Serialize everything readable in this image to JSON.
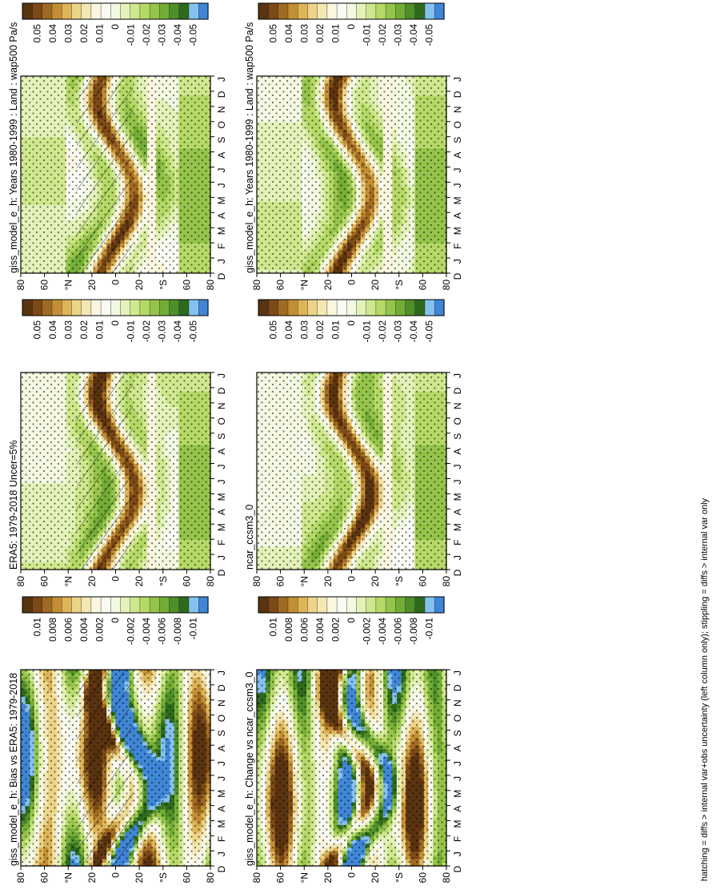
{
  "footer": "hatching = diffs > internal var+obs uncertainty (left column only); stippling = diffs > internal var only",
  "months": [
    "D",
    "J",
    "F",
    "M",
    "A",
    "M",
    "J",
    "J",
    "A",
    "S",
    "O",
    "N",
    "D",
    "J"
  ],
  "lat_labels": [
    "80",
    "60",
    "°N",
    "20",
    "0",
    "20",
    "°S",
    "60",
    "80"
  ],
  "palette": [
    "#3f87d6",
    "#85c1ef",
    "#2e6a1b",
    "#4f8f2a",
    "#74ad36",
    "#95c44b",
    "#b5d967",
    "#cfe88d",
    "#e3f2b8",
    "#f3f9e2",
    "#fbfbf6",
    "#fbf6e0",
    "#f4e7b3",
    "#ecd489",
    "#ddb458",
    "#c48f34",
    "#a06a22",
    "#7c4a16",
    "#5a3310"
  ],
  "cb_labels_main": [
    "0.05",
    "0.04",
    "0.03",
    "0.02",
    "0.01",
    "0",
    "-0.01",
    "-0.02",
    "-0.03",
    "-0.04",
    "-0.05"
  ],
  "cb_labels_diff": [
    "0.01",
    "0.008",
    "0.006",
    "0.004",
    "0.002",
    "0",
    "-0.002",
    "-0.004",
    "-0.006",
    "-0.008",
    "-0.01"
  ],
  "panels": [
    {
      "title": "giss_model_e_h: Years 1980-1999 : Land : wap500 Pa/s",
      "cb": "main",
      "hatch": true
    },
    {
      "title": "giss_model_e_h: Years 1980-1999 : Land : wap500 Pa/s",
      "cb": "main",
      "hatch": false
    },
    {
      "title": "ERA5: 1979-2018 Uncer=5%",
      "cb": "main",
      "hatch": true
    },
    {
      "title": "ncar_ccsm3_0",
      "cb": "main",
      "hatch": false
    },
    {
      "title": "giss_model_e_h: Bias vs ERA5: 1979-2018",
      "cb": "diff",
      "hatch": true
    },
    {
      "title": "giss_model_e_h: Change vs ncar_ccsm3_0",
      "cb": "diff",
      "hatch": false
    }
  ]
}
